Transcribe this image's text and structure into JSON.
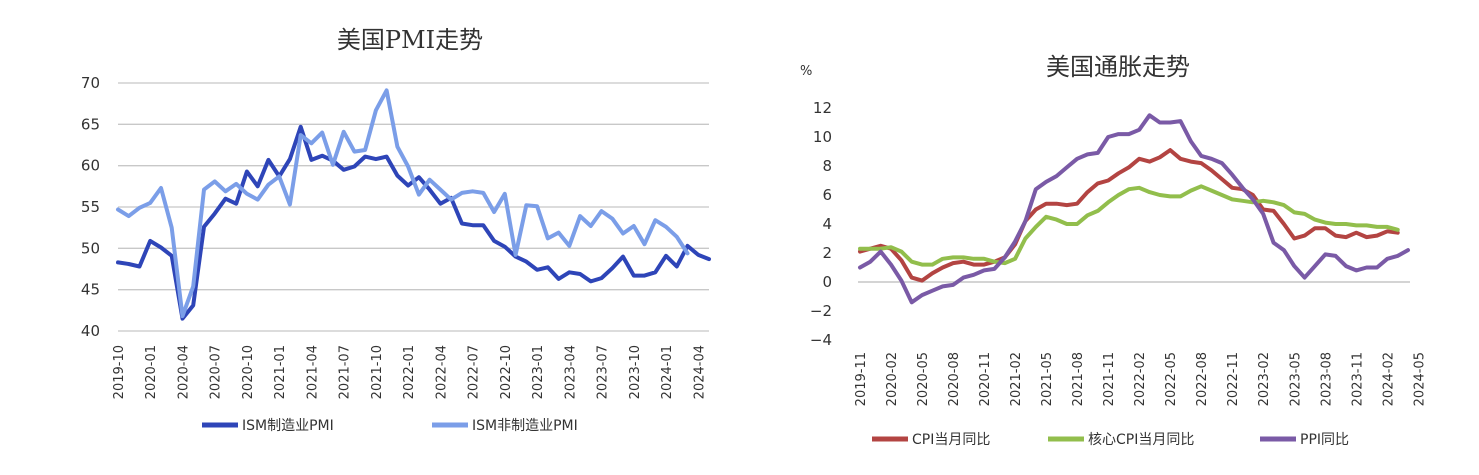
{
  "chart_data": [
    {
      "type": "line",
      "title": "美国PMI走势",
      "ylim": [
        40,
        70
      ],
      "yticks": [
        40,
        45,
        50,
        55,
        60,
        65,
        70
      ],
      "grid": true,
      "legend_position": "bottom",
      "x_start": "2019-10",
      "x_tick_labels": [
        "2019-10",
        "2020-01",
        "2020-04",
        "2020-07",
        "2020-10",
        "2021-01",
        "2021-04",
        "2021-07",
        "2021-10",
        "2022-01",
        "2022-04",
        "2022-07",
        "2022-10",
        "2023-01",
        "2023-04",
        "2023-07",
        "2023-10",
        "2024-01",
        "2024-04"
      ],
      "series": [
        {
          "name": "ISM制造业PMI",
          "color": "#2e45b8",
          "values": [
            48.3,
            48.1,
            47.8,
            50.9,
            50.1,
            49.1,
            41.5,
            43.1,
            52.6,
            54.2,
            56.0,
            55.4,
            59.3,
            57.5,
            60.7,
            58.7,
            60.8,
            64.7,
            60.7,
            61.2,
            60.6,
            59.5,
            59.9,
            61.1,
            60.8,
            61.1,
            58.8,
            57.6,
            58.6,
            57.1,
            55.4,
            56.1,
            53.0,
            52.8,
            52.8,
            50.9,
            50.2,
            49.0,
            48.4,
            47.4,
            47.7,
            46.3,
            47.1,
            46.9,
            46.0,
            46.4,
            47.6,
            49.0,
            46.7,
            46.7,
            47.1,
            49.1,
            47.8,
            50.3,
            49.2,
            48.7
          ]
        },
        {
          "name": "ISM非制造业PMI",
          "color": "#7b9ee8",
          "values": [
            54.7,
            53.9,
            54.9,
            55.5,
            57.3,
            52.5,
            41.8,
            45.4,
            57.1,
            58.1,
            56.9,
            57.8,
            56.6,
            55.9,
            57.7,
            58.7,
            55.3,
            63.7,
            62.7,
            64.0,
            60.1,
            64.1,
            61.7,
            61.9,
            66.7,
            69.1,
            62.3,
            59.9,
            56.5,
            58.3,
            57.1,
            55.9,
            56.7,
            56.9,
            56.7,
            54.4,
            56.6,
            49.2,
            55.2,
            55.1,
            51.2,
            51.9,
            50.3,
            53.9,
            52.7,
            54.5,
            53.6,
            51.8,
            52.7,
            50.5,
            53.4,
            52.6,
            51.4,
            49.4
          ]
        }
      ]
    },
    {
      "type": "line",
      "title": "美国通胀走势",
      "ylabel": "%",
      "ylim": [
        -4,
        12
      ],
      "yticks": [
        -4,
        -2,
        0,
        2,
        4,
        6,
        8,
        10,
        12
      ],
      "grid": false,
      "legend_position": "bottom",
      "x_start": "2019-11",
      "x_tick_labels": [
        "2019-11",
        "2020-02",
        "2020-05",
        "2020-08",
        "2020-11",
        "2021-02",
        "2021-05",
        "2021-08",
        "2021-11",
        "2022-02",
        "2022-05",
        "2022-08",
        "2022-11",
        "2023-02",
        "2023-05",
        "2023-08",
        "2023-11",
        "2024-02",
        "2024-05"
      ],
      "series": [
        {
          "name": "CPI当月同比",
          "color": "#b34442",
          "values": [
            2.1,
            2.3,
            2.5,
            2.3,
            1.5,
            0.3,
            0.1,
            0.6,
            1.0,
            1.3,
            1.4,
            1.2,
            1.2,
            1.4,
            1.7,
            2.6,
            4.2,
            5.0,
            5.4,
            5.4,
            5.3,
            5.4,
            6.2,
            6.8,
            7.0,
            7.5,
            7.9,
            8.5,
            8.3,
            8.6,
            9.1,
            8.5,
            8.3,
            8.2,
            7.7,
            7.1,
            6.5,
            6.4,
            6.0,
            5.0,
            4.9,
            4.0,
            3.0,
            3.2,
            3.7,
            3.7,
            3.2,
            3.1,
            3.4,
            3.1,
            3.2,
            3.5,
            3.4
          ]
        },
        {
          "name": "核心CPI当月同比",
          "color": "#92be4c",
          "values": [
            2.3,
            2.3,
            2.3,
            2.4,
            2.1,
            1.4,
            1.2,
            1.2,
            1.6,
            1.7,
            1.7,
            1.6,
            1.6,
            1.4,
            1.3,
            1.6,
            3.0,
            3.8,
            4.5,
            4.3,
            4.0,
            4.0,
            4.6,
            4.9,
            5.5,
            6.0,
            6.4,
            6.5,
            6.2,
            6.0,
            5.9,
            5.9,
            6.3,
            6.6,
            6.3,
            6.0,
            5.7,
            5.6,
            5.5,
            5.6,
            5.5,
            5.3,
            4.8,
            4.7,
            4.3,
            4.1,
            4.0,
            4.0,
            3.9,
            3.9,
            3.8,
            3.8,
            3.6
          ]
        },
        {
          "name": "PPI同比",
          "color": "#7a5aa6",
          "values": [
            1.0,
            1.4,
            2.1,
            1.2,
            0.1,
            -1.4,
            -0.9,
            -0.6,
            -0.3,
            -0.2,
            0.3,
            0.5,
            0.8,
            0.9,
            1.7,
            2.8,
            4.2,
            6.4,
            6.9,
            7.3,
            7.9,
            8.5,
            8.8,
            8.9,
            10.0,
            10.2,
            10.2,
            10.5,
            11.5,
            11.0,
            11.0,
            11.1,
            9.7,
            8.7,
            8.5,
            8.2,
            7.4,
            6.5,
            5.7,
            4.7,
            2.7,
            2.2,
            1.1,
            0.3,
            1.1,
            1.9,
            1.8,
            1.1,
            0.8,
            1.0,
            1.0,
            1.6,
            1.8,
            2.2
          ]
        }
      ]
    }
  ]
}
